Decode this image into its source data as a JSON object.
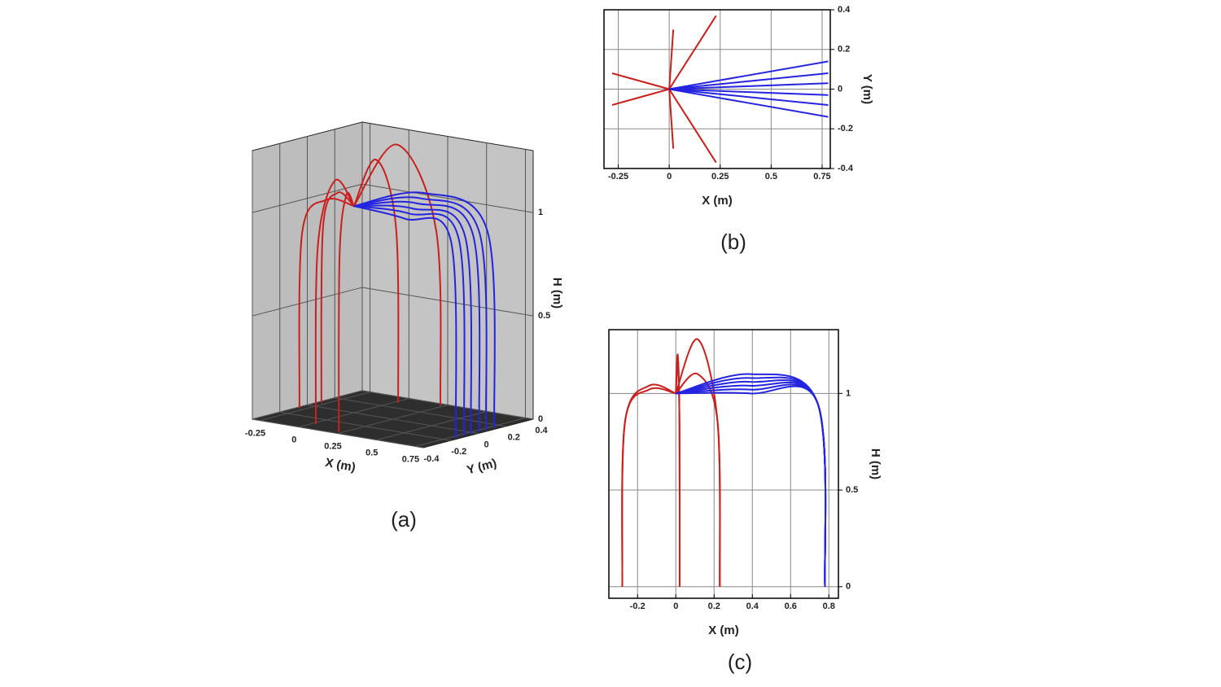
{
  "chart_data": [
    {
      "type": "line3d",
      "caption": "(a)",
      "x_label": "X (m)",
      "y_label": "Y (m)",
      "z_label": "H (m)",
      "xlim": [
        -0.3,
        0.8
      ],
      "ylim": [
        -0.4,
        0.4
      ],
      "zlim": [
        0,
        1.3
      ],
      "xticks": [
        -0.25,
        0,
        0.25,
        0.5,
        0.75
      ],
      "yticks": [
        -0.4,
        -0.2,
        0,
        0.2,
        0.4
      ],
      "zticks": [
        0,
        0.5,
        1
      ],
      "series": [
        {
          "color": "#c8201e",
          "x": [
            0,
            -0.14,
            -0.266,
            -0.28
          ],
          "y": [
            0,
            0.04,
            0.076,
            0.08
          ],
          "z": [
            1,
            1.04,
            0.85,
            0
          ]
        },
        {
          "color": "#c8201e",
          "x": [
            0,
            -0.14,
            -0.266,
            -0.28
          ],
          "y": [
            0,
            -0.04,
            -0.076,
            -0.08
          ],
          "z": [
            1,
            1.02,
            0.85,
            0
          ]
        },
        {
          "color": "#c8201e",
          "x": [
            0,
            0.01,
            0.019,
            0.02
          ],
          "y": [
            0,
            0.15,
            0.285,
            0.3
          ],
          "z": [
            1,
            1.2,
            0.85,
            0
          ]
        },
        {
          "color": "#c8201e",
          "x": [
            0,
            0.01,
            0.019,
            0.02
          ],
          "y": [
            0,
            -0.15,
            -0.285,
            -0.3
          ],
          "z": [
            1,
            1.15,
            0.85,
            0
          ]
        },
        {
          "color": "#c8201e",
          "x": [
            0,
            0.115,
            0.2185,
            0.23
          ],
          "y": [
            0,
            0.185,
            0.3515,
            0.37
          ],
          "z": [
            1,
            1.28,
            0.85,
            0
          ]
        },
        {
          "color": "#c8201e",
          "x": [
            0,
            0.115,
            0.2185,
            0.23
          ],
          "y": [
            0,
            -0.185,
            -0.3515,
            -0.37
          ],
          "z": [
            1,
            1.1,
            0.85,
            0
          ]
        },
        {
          "color": "#2424e0",
          "x": [
            0,
            0.39,
            0.741,
            0.78
          ],
          "y": [
            0,
            0.07,
            0.133,
            0.14
          ],
          "z": [
            1,
            1.1,
            0.95,
            0
          ]
        },
        {
          "color": "#2424e0",
          "x": [
            0,
            0.39,
            0.741,
            0.78
          ],
          "y": [
            0,
            0.04,
            0.076,
            0.08
          ],
          "z": [
            1,
            1.08,
            0.95,
            0
          ]
        },
        {
          "color": "#2424e0",
          "x": [
            0,
            0.39,
            0.741,
            0.78
          ],
          "y": [
            0,
            0.015,
            0.0285,
            0.03
          ],
          "z": [
            1,
            1.06,
            0.95,
            0
          ]
        },
        {
          "color": "#2424e0",
          "x": [
            0,
            0.39,
            0.741,
            0.78
          ],
          "y": [
            0,
            -0.015,
            -0.0285,
            -0.03
          ],
          "z": [
            1,
            1.04,
            0.95,
            0
          ]
        },
        {
          "color": "#2424e0",
          "x": [
            0,
            0.39,
            0.741,
            0.78
          ],
          "y": [
            0,
            -0.04,
            -0.076,
            -0.08
          ],
          "z": [
            1,
            1.02,
            0.95,
            0
          ]
        },
        {
          "color": "#2424e0",
          "x": [
            0,
            0.39,
            0.741,
            0.78
          ],
          "y": [
            0,
            -0.07,
            -0.133,
            -0.14
          ],
          "z": [
            1,
            1.0,
            0.95,
            0
          ]
        }
      ]
    },
    {
      "type": "line",
      "caption": "(b)",
      "x_label": "X (m)",
      "y_label": "Y (m)",
      "xlim": [
        -0.32,
        0.79
      ],
      "ylim": [
        -0.4,
        0.4
      ],
      "xticks": [
        -0.25,
        0,
        0.25,
        0.5,
        0.75
      ],
      "yticks": [
        -0.4,
        -0.2,
        0,
        0.2,
        0.4
      ],
      "grid": true,
      "series": [
        {
          "color": "#c8201e",
          "x": [
            0,
            -0.28
          ],
          "values": [
            0,
            0.08
          ]
        },
        {
          "color": "#c8201e",
          "x": [
            0,
            -0.28
          ],
          "values": [
            0,
            -0.08
          ]
        },
        {
          "color": "#c8201e",
          "x": [
            0,
            0.02
          ],
          "values": [
            0,
            0.3
          ]
        },
        {
          "color": "#c8201e",
          "x": [
            0,
            0.02
          ],
          "values": [
            0,
            -0.3
          ]
        },
        {
          "color": "#c8201e",
          "x": [
            0,
            0.23
          ],
          "values": [
            0,
            0.37
          ]
        },
        {
          "color": "#c8201e",
          "x": [
            0,
            0.23
          ],
          "values": [
            0,
            -0.37
          ]
        },
        {
          "color": "#2424e0",
          "x": [
            0,
            0.78
          ],
          "values": [
            0,
            0.14
          ]
        },
        {
          "color": "#2424e0",
          "x": [
            0,
            0.78
          ],
          "values": [
            0,
            0.08
          ]
        },
        {
          "color": "#2424e0",
          "x": [
            0,
            0.78
          ],
          "values": [
            0,
            0.03
          ]
        },
        {
          "color": "#2424e0",
          "x": [
            0,
            0.78
          ],
          "values": [
            0,
            -0.03
          ]
        },
        {
          "color": "#2424e0",
          "x": [
            0,
            0.78
          ],
          "values": [
            0,
            -0.08
          ]
        },
        {
          "color": "#2424e0",
          "x": [
            0,
            0.78
          ],
          "values": [
            0,
            -0.14
          ]
        }
      ]
    },
    {
      "type": "line",
      "caption": "(c)",
      "x_label": "X (m)",
      "y_label": "H (m)",
      "xlim": [
        -0.35,
        0.85
      ],
      "ylim": [
        -0.06,
        1.33
      ],
      "xticks": [
        -0.2,
        0,
        0.2,
        0.4,
        0.6,
        0.8
      ],
      "yticks": [
        0,
        0.5,
        1
      ],
      "grid": true,
      "series": [
        {
          "color": "#c8201e",
          "x": [
            0,
            -0.14,
            -0.266,
            -0.28
          ],
          "values": [
            1,
            1.04,
            0.85,
            0
          ]
        },
        {
          "color": "#c8201e",
          "x": [
            0,
            -0.14,
            -0.266,
            -0.28
          ],
          "values": [
            1,
            1.02,
            0.85,
            0
          ]
        },
        {
          "color": "#c8201e",
          "x": [
            0,
            0.01,
            0.019,
            0.02
          ],
          "values": [
            1,
            1.2,
            0.85,
            0
          ]
        },
        {
          "color": "#c8201e",
          "x": [
            0,
            0.01,
            0.019,
            0.02
          ],
          "values": [
            1,
            1.15,
            0.85,
            0
          ]
        },
        {
          "color": "#c8201e",
          "x": [
            0,
            0.115,
            0.2185,
            0.23
          ],
          "values": [
            1,
            1.28,
            0.85,
            0
          ]
        },
        {
          "color": "#c8201e",
          "x": [
            0,
            0.115,
            0.2185,
            0.23
          ],
          "values": [
            1,
            1.1,
            0.85,
            0
          ]
        },
        {
          "color": "#2424e0",
          "x": [
            0,
            0.39,
            0.741,
            0.78
          ],
          "values": [
            1,
            1.1,
            0.95,
            0
          ]
        },
        {
          "color": "#2424e0",
          "x": [
            0,
            0.39,
            0.741,
            0.78
          ],
          "values": [
            1,
            1.08,
            0.95,
            0
          ]
        },
        {
          "color": "#2424e0",
          "x": [
            0,
            0.39,
            0.741,
            0.78
          ],
          "values": [
            1,
            1.06,
            0.95,
            0
          ]
        },
        {
          "color": "#2424e0",
          "x": [
            0,
            0.39,
            0.741,
            0.78
          ],
          "values": [
            1,
            1.04,
            0.95,
            0
          ]
        },
        {
          "color": "#2424e0",
          "x": [
            0,
            0.39,
            0.741,
            0.78
          ],
          "values": [
            1,
            1.02,
            0.95,
            0
          ]
        },
        {
          "color": "#2424e0",
          "x": [
            0,
            0.39,
            0.741,
            0.78
          ],
          "values": [
            1,
            1.0,
            0.95,
            0
          ]
        }
      ]
    }
  ]
}
